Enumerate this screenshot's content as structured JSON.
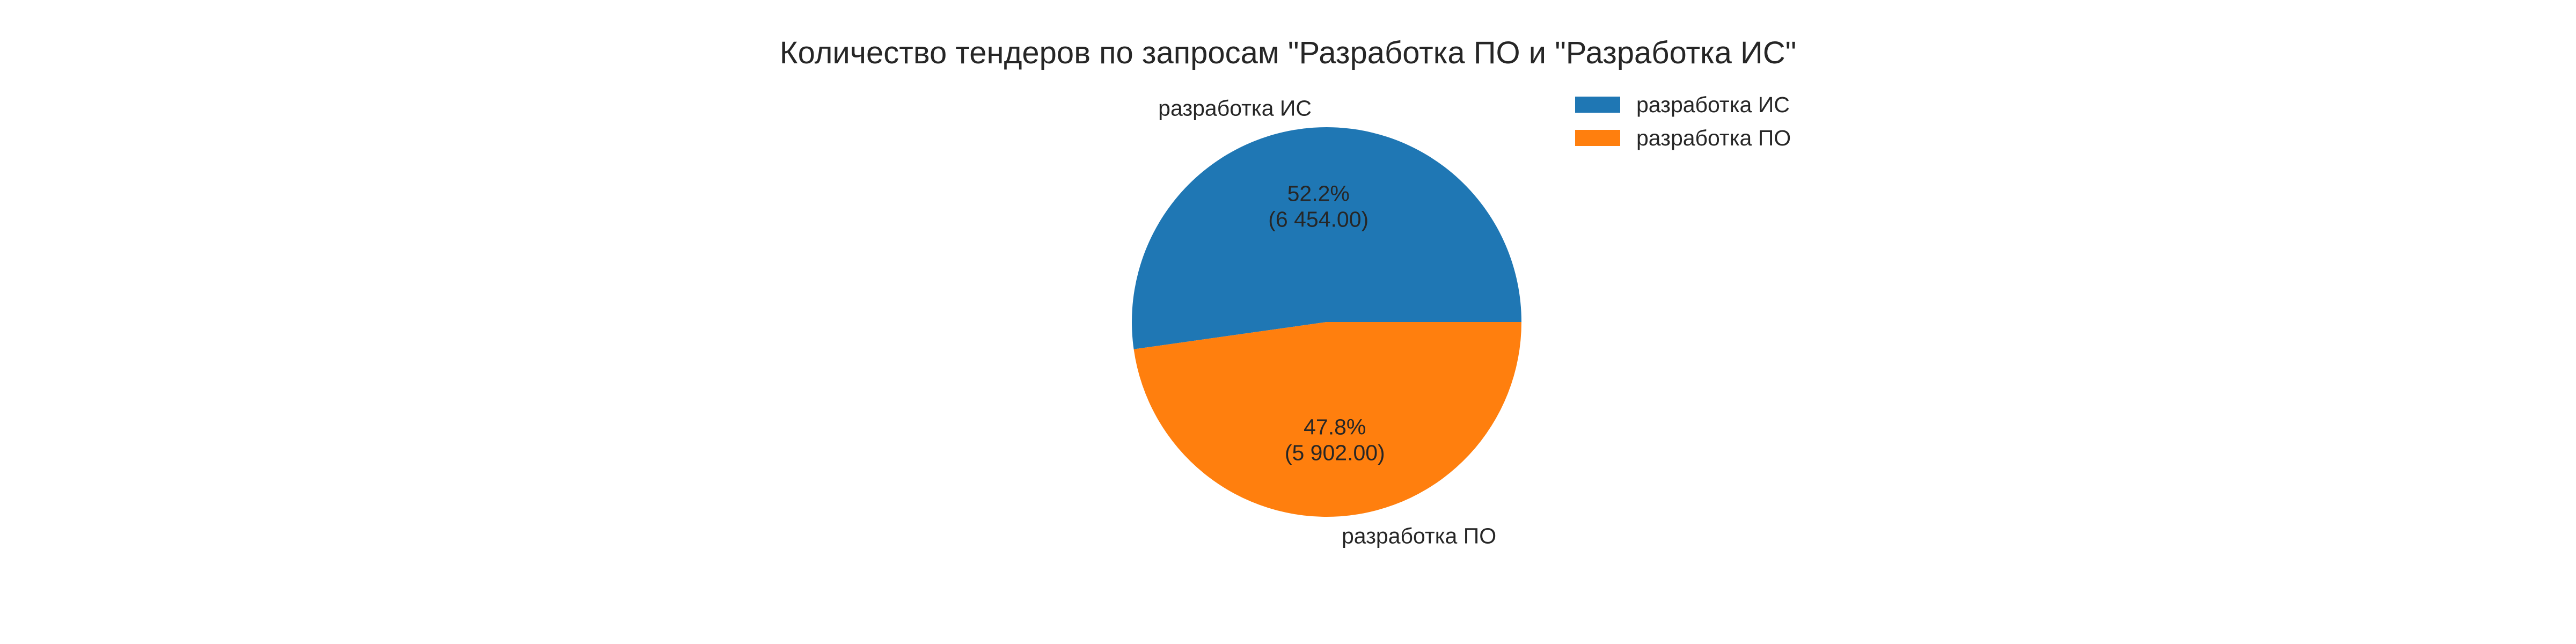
{
  "chart_data": {
    "type": "pie",
    "title": "Количество тендеров по запросам \"Разработка ПО и \"Разработка ИС\"",
    "slices": [
      {
        "label": "разработка ИС",
        "value": 6454.0,
        "percent_label": "52.2%",
        "value_label": "(6 454.00)",
        "color": "#1f77b4"
      },
      {
        "label": "разработка ПО",
        "value": 5902.0,
        "percent_label": "47.8%",
        "value_label": "(5 902.00)",
        "color": "#ff7f0e"
      }
    ],
    "start_angle_deg": 0,
    "direction": "counterclockwise",
    "legend": {
      "position": "top-right",
      "entries": [
        "разработка ИС",
        "разработка ПО"
      ]
    }
  }
}
